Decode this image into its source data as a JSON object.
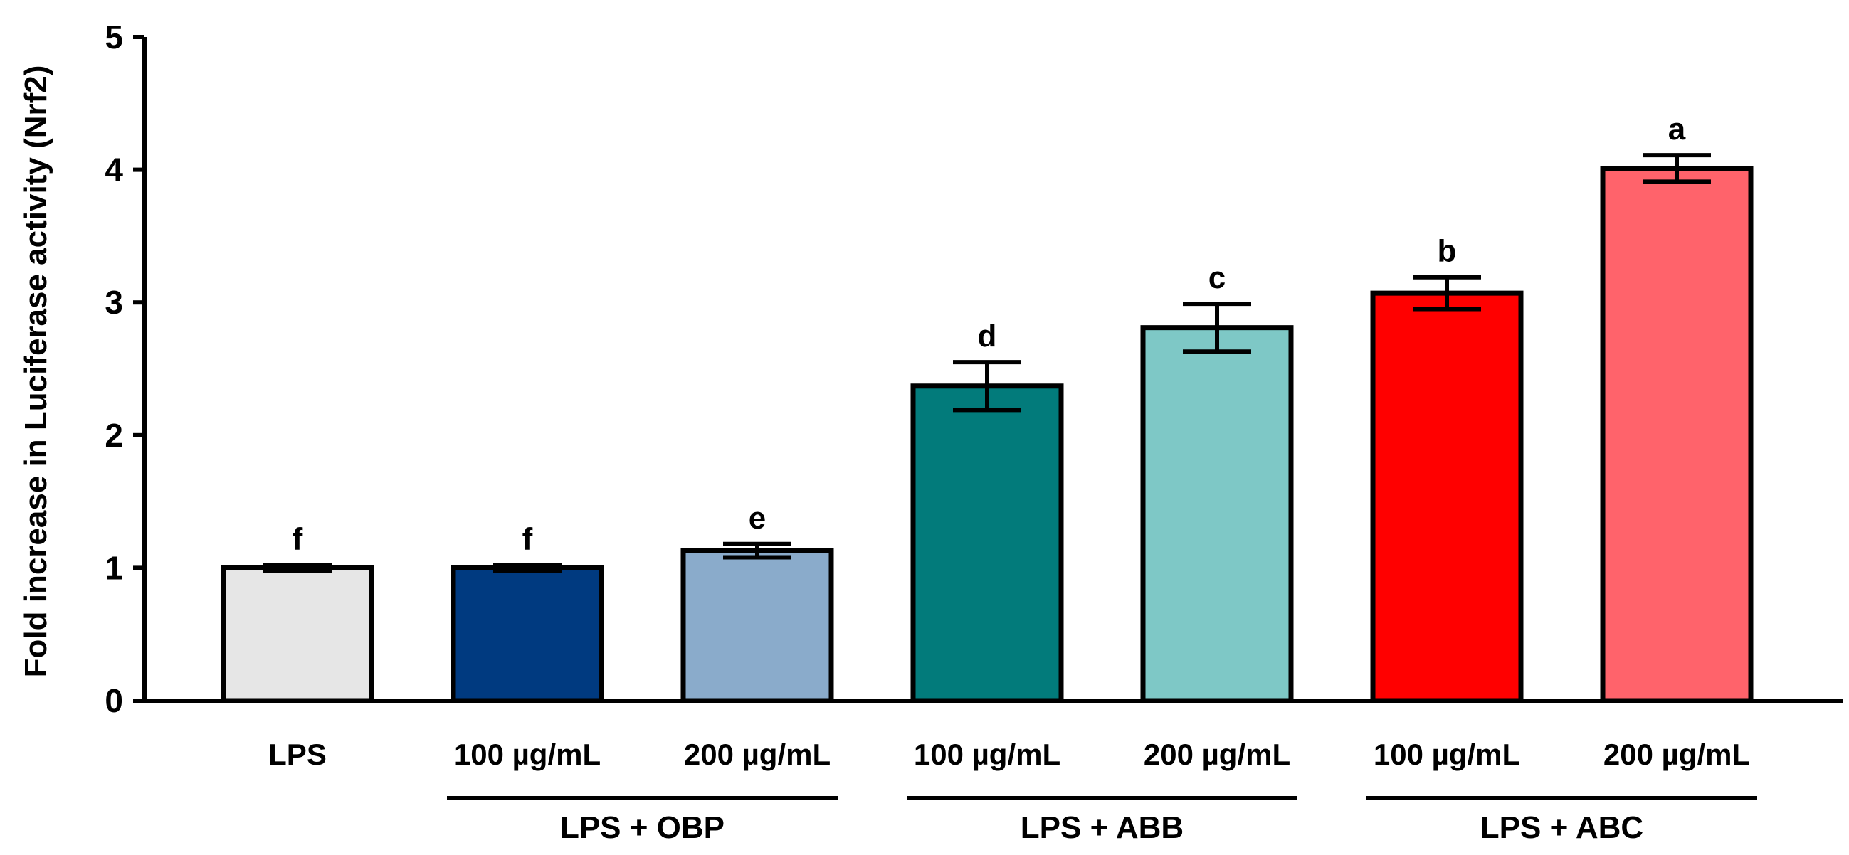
{
  "chart_data": {
    "type": "bar",
    "title": "",
    "xlabel": "",
    "ylabel": "Fold increase in Luciferase activity (Nrf2)",
    "ylim": [
      0,
      5
    ],
    "yticks": [
      0,
      1,
      2,
      3,
      4,
      5
    ],
    "categories": [
      "LPS",
      "100 µg/mL",
      "200 µg/mL",
      "100 µg/mL",
      "200 µg/mL",
      "100 µg/mL",
      "200 µg/mL"
    ],
    "values": [
      1.0,
      1.0,
      1.13,
      2.37,
      2.81,
      3.07,
      4.01
    ],
    "errors": [
      0.02,
      0.02,
      0.05,
      0.18,
      0.18,
      0.12,
      0.1
    ],
    "significance": [
      "f",
      "f",
      "e",
      "d",
      "c",
      "b",
      "a"
    ],
    "colors": [
      "#e6e6e6",
      "#003a80",
      "#8aabcb",
      "#027b7b",
      "#7ec8c6",
      "#ff0000",
      "#ff636b"
    ],
    "groups": [
      {
        "label": "LPS + OBP",
        "start": 1,
        "end": 2
      },
      {
        "label": "LPS + ABB",
        "start": 3,
        "end": 4
      },
      {
        "label": "LPS + ABC",
        "start": 5,
        "end": 6
      }
    ]
  }
}
